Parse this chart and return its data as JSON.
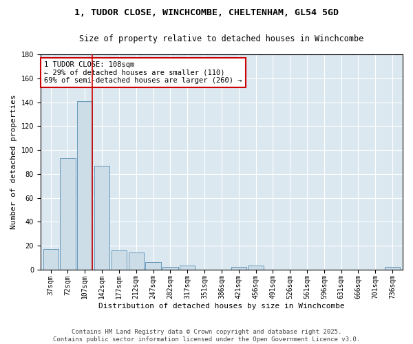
{
  "title1": "1, TUDOR CLOSE, WINCHCOMBE, CHELTENHAM, GL54 5GD",
  "title2": "Size of property relative to detached houses in Winchcombe",
  "xlabel": "Distribution of detached houses by size in Winchcombe",
  "ylabel": "Number of detached properties",
  "categories": [
    "37sqm",
    "72sqm",
    "107sqm",
    "142sqm",
    "177sqm",
    "212sqm",
    "247sqm",
    "282sqm",
    "317sqm",
    "351sqm",
    "386sqm",
    "421sqm",
    "456sqm",
    "491sqm",
    "526sqm",
    "561sqm",
    "596sqm",
    "631sqm",
    "666sqm",
    "701sqm",
    "736sqm"
  ],
  "values": [
    17,
    93,
    141,
    87,
    16,
    14,
    6,
    2,
    3,
    0,
    0,
    2,
    3,
    0,
    0,
    0,
    0,
    0,
    0,
    0,
    2
  ],
  "bar_color": "#ccdde8",
  "bar_edge_color": "#6699bb",
  "vline_index": 2,
  "vline_color": "#cc0000",
  "annotation_text": "1 TUDOR CLOSE: 108sqm\n← 29% of detached houses are smaller (110)\n69% of semi-detached houses are larger (260) →",
  "annotation_box_color": "#ffffff",
  "annotation_box_edge": "#cc0000",
  "ylim": [
    0,
    180
  ],
  "yticks": [
    0,
    20,
    40,
    60,
    80,
    100,
    120,
    140,
    160,
    180
  ],
  "bg_color": "#dce8f0",
  "footer": "Contains HM Land Registry data © Crown copyright and database right 2025.\nContains public sector information licensed under the Open Government Licence v3.0.",
  "title1_fontsize": 9.5,
  "title2_fontsize": 8.5,
  "xlabel_fontsize": 8,
  "ylabel_fontsize": 8,
  "tick_fontsize": 7,
  "annotation_fontsize": 7.5,
  "footer_fontsize": 6.5
}
